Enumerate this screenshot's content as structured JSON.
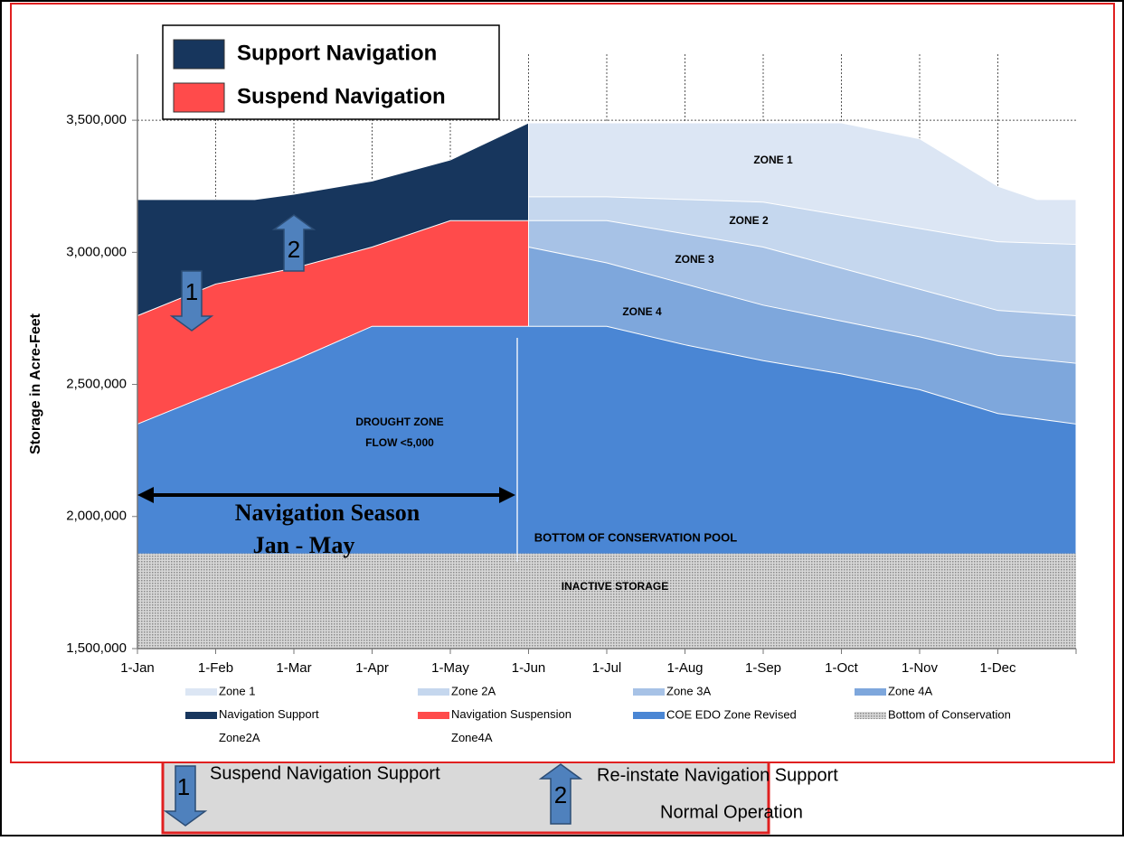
{
  "chart_data": {
    "type": "area",
    "y_label": "Storage in Acre-Feet",
    "xlim": [
      0,
      12
    ],
    "xticks": [
      {
        "value": 0,
        "label": "1-Jan"
      },
      {
        "value": 1,
        "label": "1-Feb"
      },
      {
        "value": 2,
        "label": "1-Mar"
      },
      {
        "value": 3,
        "label": "1-Apr"
      },
      {
        "value": 4,
        "label": "1-May"
      },
      {
        "value": 5,
        "label": "1-Jun"
      },
      {
        "value": 6,
        "label": "1-Jul"
      },
      {
        "value": 7,
        "label": "1-Aug"
      },
      {
        "value": 8,
        "label": "1-Sep"
      },
      {
        "value": 9,
        "label": "1-Oct"
      },
      {
        "value": 10,
        "label": "1-Nov"
      },
      {
        "value": 11,
        "label": "1-Dec"
      }
    ],
    "ylim": [
      1500000,
      3750000
    ],
    "yticks": [
      {
        "value": 1500000,
        "label": "1,500,000"
      },
      {
        "value": 2000000,
        "label": "2,000,000"
      },
      {
        "value": 2500000,
        "label": "2,500,000"
      },
      {
        "value": 3000000,
        "label": "3,000,000"
      },
      {
        "value": 3500000,
        "label": "3,500,000"
      }
    ],
    "grid": true,
    "series": [
      {
        "name": "Zone 1",
        "color": "#dce6f4",
        "x": [
          5,
          6,
          7,
          8,
          9,
          10,
          11,
          11.5,
          12
        ],
        "values": [
          3490000,
          3490000,
          3490000,
          3490000,
          3490000,
          3430000,
          3250000,
          3200000,
          3200000
        ]
      },
      {
        "name": "Zone 2A",
        "color": "#c5d7ee",
        "x": [
          5,
          6,
          7,
          8,
          9,
          10,
          11,
          12
        ],
        "values": [
          3210000,
          3210000,
          3200000,
          3190000,
          3140000,
          3090000,
          3040000,
          3030000
        ]
      },
      {
        "name": "Zone 3A",
        "color": "#a7c2e6",
        "x": [
          5,
          6,
          7,
          8,
          9,
          10,
          11,
          12
        ],
        "values": [
          3120000,
          3120000,
          3070000,
          3020000,
          2940000,
          2860000,
          2780000,
          2760000
        ]
      },
      {
        "name": "Zone 4A",
        "color": "#7ea7dc",
        "x": [
          5,
          6,
          7,
          8,
          9,
          10,
          11,
          12
        ],
        "values": [
          3020000,
          2960000,
          2880000,
          2800000,
          2740000,
          2680000,
          2610000,
          2580000
        ]
      },
      {
        "name": "Navigation Support Zone2A",
        "color": "#17365d",
        "x": [
          0,
          1,
          1.5,
          2,
          3,
          4,
          5
        ],
        "values": [
          3200000,
          3200000,
          3200000,
          3220000,
          3270000,
          3350000,
          3490000
        ]
      },
      {
        "name": "Navigation Suspension Zone4A",
        "color": "#ff4b4b",
        "x": [
          0,
          1,
          2,
          3,
          4,
          5
        ],
        "values": [
          2760000,
          2880000,
          2940000,
          3020000,
          3120000,
          3120000
        ]
      },
      {
        "name": "COE EDO Zone Revised",
        "color": "#4a86d4",
        "x": [
          0,
          1,
          2,
          3,
          4,
          5,
          6,
          7,
          8,
          9,
          10,
          11,
          12
        ],
        "values": [
          2350000,
          2470000,
          2590000,
          2720000,
          2720000,
          2720000,
          2720000,
          2650000,
          2590000,
          2540000,
          2480000,
          2390000,
          2350000
        ]
      },
      {
        "name": "Bottom of Conservation",
        "color": "#b0b0b0",
        "x": [
          0,
          12
        ],
        "values": [
          1860000,
          1860000
        ]
      }
    ],
    "annotations": [
      "ZONE 1",
      "ZONE 2",
      "ZONE 3",
      "ZONE 4",
      "DROUGHT ZONE",
      "FLOW <5,000",
      "BOTTOM OF CONSERVATION POOL",
      "INACTIVE STORAGE",
      "Navigation Season",
      "Jan - May"
    ],
    "key_box": [
      {
        "name": "Support Navigation",
        "color": "#17365d"
      },
      {
        "name": "Suspend Navigation",
        "color": "#ff4b4b"
      }
    ],
    "arrow_labels": [
      "1",
      "2"
    ],
    "notes": [
      "Suspend Navigation Support",
      "Re-instate Navigation Support",
      "Normal Operation"
    ]
  }
}
